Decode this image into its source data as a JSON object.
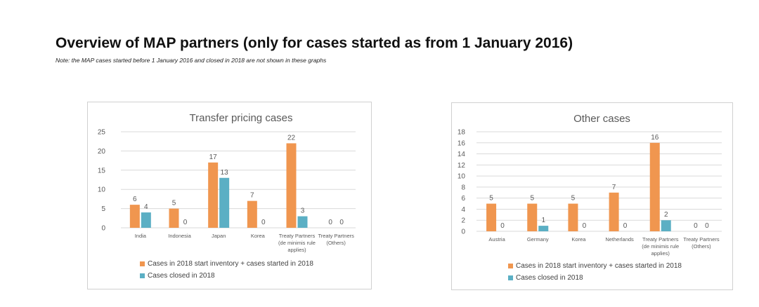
{
  "page": {
    "title": "Overview of MAP partners (only for cases started as from 1 January 2016)",
    "note": "Note: the MAP cases started before 1 January 2016 and closed in 2018 are not shown in these graphs"
  },
  "colors": {
    "series1": "#F0964F",
    "series2": "#5BAFC4",
    "gridline": "#d9d9d9",
    "axis_text": "#595959"
  },
  "chart_data": [
    {
      "type": "bar",
      "title": "Transfer pricing cases",
      "categories": [
        "India",
        "Indonesia",
        "Japan",
        "Korea",
        "Treaty Partners (de minimis rule applies)",
        "Treaty Partners (Others)"
      ],
      "category_lines": [
        [
          "India"
        ],
        [
          "Indonesia"
        ],
        [
          "Japan"
        ],
        [
          "Korea"
        ],
        [
          "Treaty Partners",
          "(de minimis rule",
          "applies)"
        ],
        [
          "Treaty Partners",
          "(Others)"
        ]
      ],
      "series": [
        {
          "name": "Cases in 2018 start inventory + cases started in 2018",
          "values": [
            6,
            5,
            17,
            7,
            22,
            0
          ]
        },
        {
          "name": "Cases closed in 2018",
          "values": [
            4,
            0,
            13,
            0,
            3,
            0
          ]
        }
      ],
      "ylim": [
        0,
        25
      ],
      "yticks": [
        0,
        5,
        10,
        15,
        20,
        25
      ],
      "grid": true,
      "legend": "bottom"
    },
    {
      "type": "bar",
      "title": "Other cases",
      "categories": [
        "Austria",
        "Germany",
        "Korea",
        "Netherlands",
        "Treaty Partners (de minimis rule applies)",
        "Treaty Partners (Others)"
      ],
      "category_lines": [
        [
          "Austria"
        ],
        [
          "Germany"
        ],
        [
          "Korea"
        ],
        [
          "Netherlands"
        ],
        [
          "Treaty Partners",
          "(de minimis rule",
          "applies)"
        ],
        [
          "Treaty Partners",
          "(Others)"
        ]
      ],
      "series": [
        {
          "name": "Cases in 2018 start inventory + cases started in 2018",
          "values": [
            5,
            5,
            5,
            7,
            16,
            0
          ]
        },
        {
          "name": "Cases closed in 2018",
          "values": [
            0,
            1,
            0,
            0,
            2,
            0
          ]
        }
      ],
      "ylim": [
        0,
        18
      ],
      "yticks": [
        0,
        2,
        4,
        6,
        8,
        10,
        12,
        14,
        16,
        18
      ],
      "grid": true,
      "legend": "bottom"
    }
  ]
}
